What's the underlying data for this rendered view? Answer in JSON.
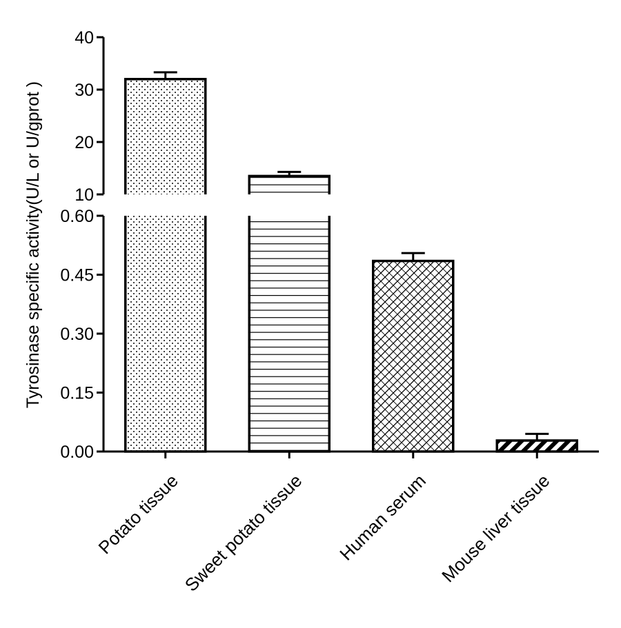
{
  "chart_data": {
    "type": "bar",
    "ylabel": "Tyrosinase specific activity(U/L or U/gprot )",
    "xlabel": "",
    "categories": [
      "Potato tissue",
      "Sweet potato tissue",
      "Human serum",
      "Mouse liver tissue"
    ],
    "values": [
      32.0,
      13.5,
      0.485,
      0.028
    ],
    "errors": [
      1.3,
      0.8,
      0.02,
      0.017
    ],
    "fill_patterns": [
      "dots",
      "horizontal-lines",
      "crosshatch",
      "diagonal-stripes"
    ],
    "broken_axis": true,
    "lower_segment": {
      "ylim": [
        0,
        0.6
      ],
      "ticks": [
        "0.00",
        "0.15",
        "0.30",
        "0.45",
        "0.60"
      ]
    },
    "upper_segment": {
      "ylim": [
        10,
        40
      ],
      "ticks": [
        "10",
        "20",
        "30",
        "40"
      ]
    },
    "grid": false,
    "legend": "none"
  }
}
